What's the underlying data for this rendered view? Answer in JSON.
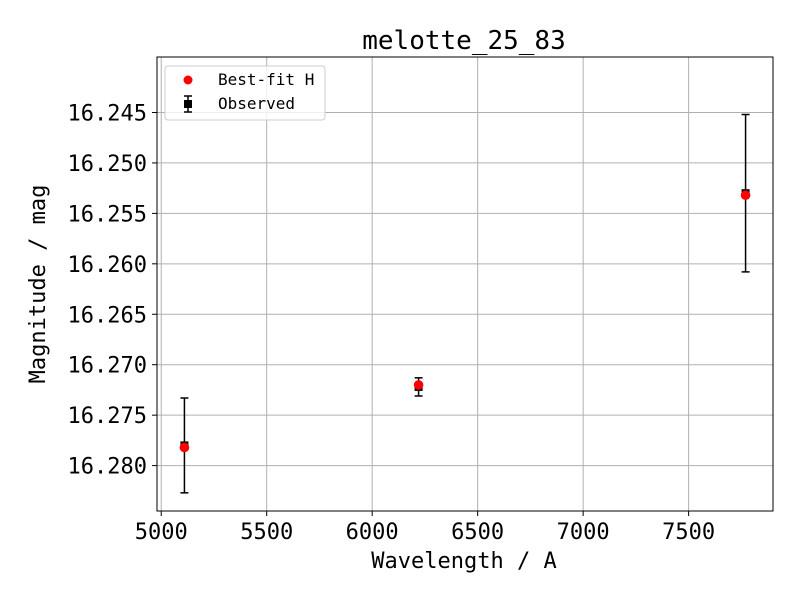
{
  "chart_data": {
    "type": "scatter",
    "title": "melotte_25_83",
    "xlabel": "Wavelength / A",
    "ylabel": "Magnitude / mag",
    "xlim": [
      4980,
      7900
    ],
    "ylim": [
      16.2845,
      16.2395
    ],
    "y_inverted": true,
    "grid": true,
    "legend_placement": "top-left",
    "x_ticks": [
      5000,
      5500,
      6000,
      6500,
      7000,
      7500
    ],
    "x_tick_labels": [
      "5000",
      "5500",
      "6000",
      "6500",
      "7000",
      "7500"
    ],
    "y_ticks": [
      16.245,
      16.25,
      16.255,
      16.26,
      16.265,
      16.27,
      16.275,
      16.28
    ],
    "y_tick_labels": [
      "16.245",
      "16.250",
      "16.255",
      "16.260",
      "16.265",
      "16.270",
      "16.275",
      "16.280"
    ],
    "series": [
      {
        "name": "Best-fit H",
        "kind": "points",
        "marker": "circle",
        "color": "#ff0000",
        "x": [
          5110,
          6220,
          7770
        ],
        "y": [
          16.2782,
          16.272,
          16.2532
        ]
      },
      {
        "name": "Observed",
        "kind": "errorbar",
        "marker": "square",
        "color": "#000000",
        "x": [
          5110,
          6220,
          7770
        ],
        "y": [
          16.278,
          16.2722,
          16.253
        ],
        "yerr": [
          0.0047,
          0.0009,
          0.0078
        ]
      }
    ]
  }
}
